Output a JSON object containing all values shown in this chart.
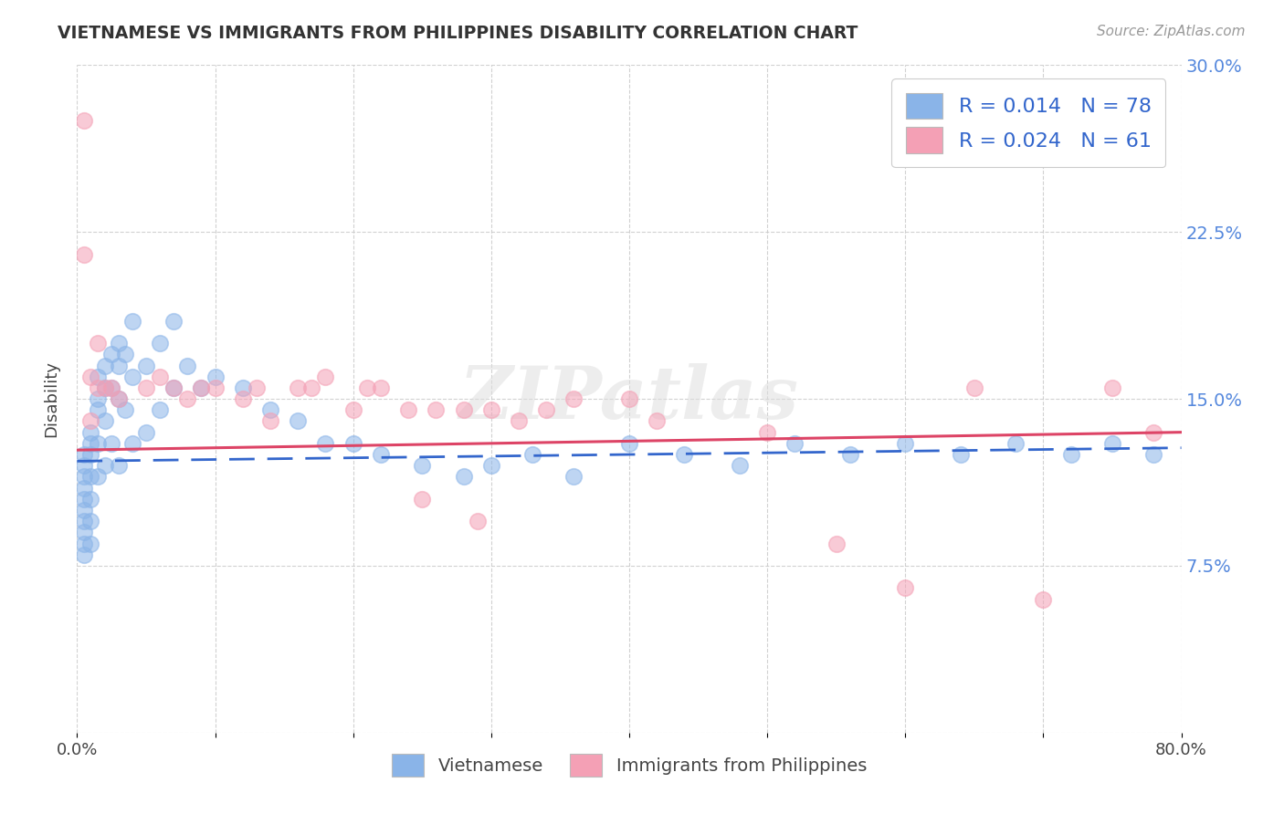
{
  "title": "VIETNAMESE VS IMMIGRANTS FROM PHILIPPINES DISABILITY CORRELATION CHART",
  "source": "Source: ZipAtlas.com",
  "ylabel": "Disability",
  "xlim": [
    0.0,
    0.8
  ],
  "ylim": [
    0.0,
    0.3
  ],
  "xticks": [
    0.0,
    0.1,
    0.2,
    0.3,
    0.4,
    0.5,
    0.6,
    0.7,
    0.8
  ],
  "xticklabels": [
    "0.0%",
    "",
    "",
    "",
    "",
    "",
    "",
    "",
    "80.0%"
  ],
  "yticks": [
    0.0,
    0.075,
    0.15,
    0.225,
    0.3
  ],
  "yticklabels": [
    "",
    "7.5%",
    "15.0%",
    "22.5%",
    "30.0%"
  ],
  "blue_R": 0.014,
  "blue_N": 78,
  "pink_R": 0.024,
  "pink_N": 61,
  "blue_color": "#8ab4e8",
  "pink_color": "#f4a0b5",
  "blue_line_color": "#3366cc",
  "pink_line_color": "#dd4466",
  "legend_label_blue": "Vietnamese",
  "legend_label_pink": "Immigrants from Philippines",
  "watermark": "ZIPatlas",
  "background_color": "#ffffff",
  "blue_scatter_x": [
    0.005,
    0.005,
    0.005,
    0.005,
    0.005,
    0.005,
    0.005,
    0.005,
    0.005,
    0.005,
    0.01,
    0.01,
    0.01,
    0.01,
    0.01,
    0.01,
    0.01,
    0.015,
    0.015,
    0.015,
    0.015,
    0.015,
    0.02,
    0.02,
    0.02,
    0.02,
    0.025,
    0.025,
    0.025,
    0.03,
    0.03,
    0.03,
    0.03,
    0.035,
    0.035,
    0.04,
    0.04,
    0.04,
    0.05,
    0.05,
    0.06,
    0.06,
    0.07,
    0.07,
    0.08,
    0.09,
    0.1,
    0.12,
    0.14,
    0.16,
    0.18,
    0.2,
    0.22,
    0.25,
    0.28,
    0.3,
    0.33,
    0.36,
    0.4,
    0.44,
    0.48,
    0.52,
    0.56,
    0.6,
    0.64,
    0.68,
    0.72,
    0.75,
    0.78
  ],
  "blue_scatter_y": [
    0.125,
    0.12,
    0.115,
    0.11,
    0.105,
    0.1,
    0.095,
    0.09,
    0.085,
    0.08,
    0.135,
    0.13,
    0.125,
    0.115,
    0.105,
    0.095,
    0.085,
    0.16,
    0.15,
    0.145,
    0.13,
    0.115,
    0.165,
    0.155,
    0.14,
    0.12,
    0.17,
    0.155,
    0.13,
    0.175,
    0.165,
    0.15,
    0.12,
    0.17,
    0.145,
    0.185,
    0.16,
    0.13,
    0.165,
    0.135,
    0.175,
    0.145,
    0.185,
    0.155,
    0.165,
    0.155,
    0.16,
    0.155,
    0.145,
    0.14,
    0.13,
    0.13,
    0.125,
    0.12,
    0.115,
    0.12,
    0.125,
    0.115,
    0.13,
    0.125,
    0.12,
    0.13,
    0.125,
    0.13,
    0.125,
    0.13,
    0.125,
    0.13,
    0.125
  ],
  "pink_scatter_x": [
    0.005,
    0.005,
    0.01,
    0.01,
    0.015,
    0.015,
    0.02,
    0.025,
    0.03,
    0.05,
    0.06,
    0.07,
    0.08,
    0.09,
    0.1,
    0.12,
    0.13,
    0.14,
    0.16,
    0.17,
    0.18,
    0.2,
    0.21,
    0.22,
    0.24,
    0.25,
    0.26,
    0.28,
    0.29,
    0.3,
    0.32,
    0.34,
    0.36,
    0.4,
    0.42,
    0.5,
    0.55,
    0.6,
    0.65,
    0.7,
    0.75,
    0.78
  ],
  "pink_scatter_y": [
    0.275,
    0.215,
    0.16,
    0.14,
    0.175,
    0.155,
    0.155,
    0.155,
    0.15,
    0.155,
    0.16,
    0.155,
    0.15,
    0.155,
    0.155,
    0.15,
    0.155,
    0.14,
    0.155,
    0.155,
    0.16,
    0.145,
    0.155,
    0.155,
    0.145,
    0.105,
    0.145,
    0.145,
    0.095,
    0.145,
    0.14,
    0.145,
    0.15,
    0.15,
    0.14,
    0.135,
    0.085,
    0.065,
    0.155,
    0.06,
    0.155,
    0.135
  ]
}
